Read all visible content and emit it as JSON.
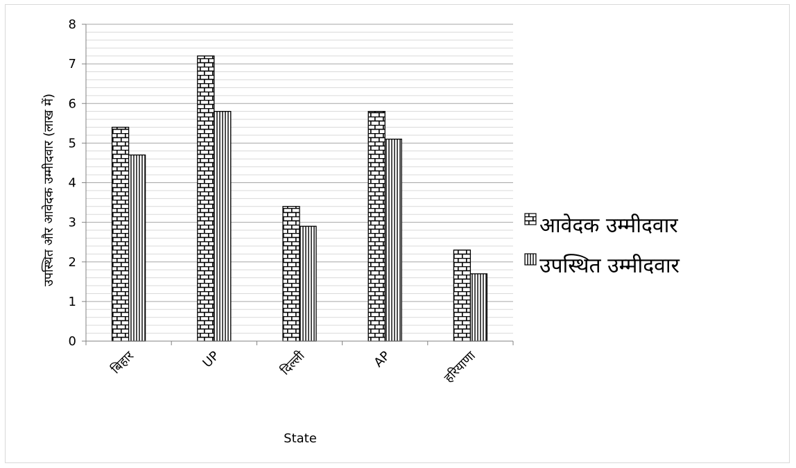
{
  "chart_data": {
    "type": "bar",
    "title": "",
    "xlabel": "State",
    "ylabel": "उपस्थित और आवेदक उम्मीदवार (लाख में)",
    "categories": [
      "बिहार",
      "UP",
      "दिल्ली",
      "AP",
      "हरियाणा"
    ],
    "series": [
      {
        "name": "आवेदक उम्मीदवार",
        "values": [
          5.4,
          7.2,
          3.4,
          5.8,
          2.3
        ],
        "pattern": "brick"
      },
      {
        "name": "उपस्थित उम्मीदवार",
        "values": [
          4.7,
          5.8,
          2.9,
          5.1,
          1.7
        ],
        "pattern": "vertical-lines"
      }
    ],
    "ylim": [
      0,
      8
    ],
    "yticks": [
      0,
      1,
      2,
      3,
      4,
      5,
      6,
      7,
      8
    ],
    "grid": true,
    "legend_position": "right",
    "colors": {
      "bar_fill": "#ffffff",
      "pattern": "#000000",
      "grid": "#a6a6a6",
      "axis": "#808080"
    }
  }
}
